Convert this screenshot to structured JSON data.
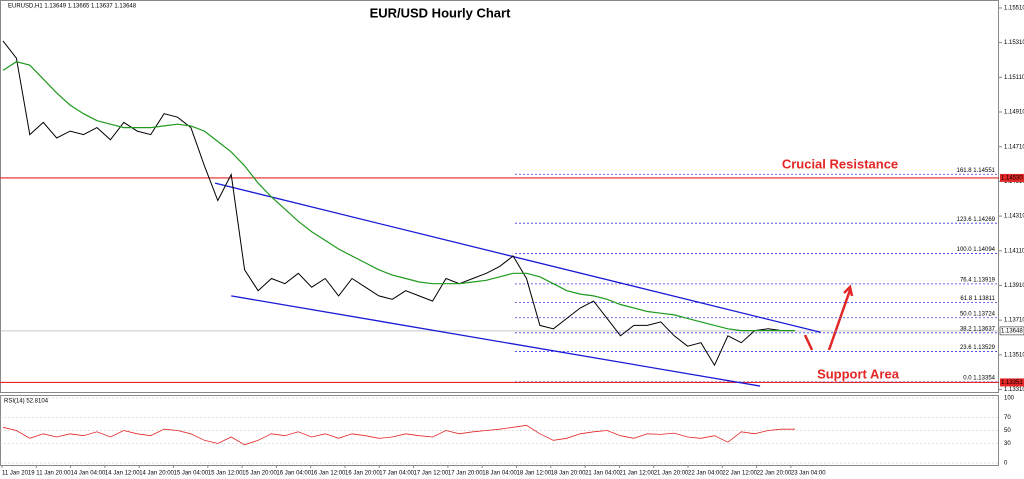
{
  "chart_data": {
    "type": "line",
    "title": "EUR/USD Hourly Chart",
    "header": "EURUSD,H1 1.13649 1.13665 1.13637 1.13648",
    "x_labels": [
      "11 Jan 2019",
      "11 Jan 20:00",
      "14 Jan 04:00",
      "14 Jan 12:00",
      "14 Jan 20:00",
      "15 Jan 04:00",
      "15 Jan 12:00",
      "15 Jan 20:00",
      "16 Jan 04:00",
      "16 Jan 12:00",
      "16 Jan 20:00",
      "17 Jan 04:00",
      "17 Jan 12:00",
      "17 Jan 20:00",
      "18 Jan 04:00",
      "18 Jan 12:00",
      "18 Jan 20:00",
      "21 Jan 04:00",
      "21 Jan 12:00",
      "21 Jan 20:00",
      "22 Jan 04:00",
      "22 Jan 12:00",
      "22 Jan 20:00",
      "23 Jan 04:00"
    ],
    "series": [
      {
        "name": "EURUSD",
        "color": "#000000",
        "values": [
          1.1532,
          1.1522,
          1.1478,
          1.1485,
          1.1476,
          1.148,
          1.1478,
          1.1482,
          1.1475,
          1.1485,
          1.148,
          1.1478,
          1.149,
          1.1488,
          1.1482,
          1.146,
          1.144,
          1.1455,
          1.14,
          1.1388,
          1.1395,
          1.1392,
          1.1398,
          1.139,
          1.1395,
          1.1385,
          1.1395,
          1.139,
          1.1385,
          1.1383,
          1.1388,
          1.1385,
          1.1382,
          1.1395,
          1.1392,
          1.1395,
          1.1398,
          1.1402,
          1.1408,
          1.1395,
          1.1368,
          1.1366,
          1.1372,
          1.1378,
          1.1382,
          1.1372,
          1.1362,
          1.1368,
          1.1368,
          1.137,
          1.1362,
          1.1356,
          1.1358,
          1.1345,
          1.1362,
          1.1358,
          1.1365,
          1.1366,
          1.1365,
          1.1365
        ]
      },
      {
        "name": "MA",
        "color": "#1f9a1f",
        "values": [
          1.1515,
          1.152,
          1.1518,
          1.151,
          1.1502,
          1.1495,
          1.149,
          1.1486,
          1.1484,
          1.1482,
          1.1482,
          1.1482,
          1.1483,
          1.1484,
          1.1483,
          1.148,
          1.1474,
          1.1468,
          1.146,
          1.145,
          1.1442,
          1.1435,
          1.1428,
          1.1422,
          1.1417,
          1.1412,
          1.1408,
          1.1404,
          1.14,
          1.1397,
          1.1395,
          1.1393,
          1.1392,
          1.1392,
          1.1392,
          1.1393,
          1.1394,
          1.1396,
          1.1398,
          1.1398,
          1.1396,
          1.1392,
          1.1388,
          1.1386,
          1.1385,
          1.1383,
          1.138,
          1.1378,
          1.1376,
          1.1375,
          1.1374,
          1.1372,
          1.137,
          1.1368,
          1.1366,
          1.1365,
          1.1365,
          1.1365,
          1.1365,
          1.1365
        ]
      }
    ],
    "ylim": [
      1.1329,
      1.1555
    ],
    "yticks": [
      {
        "value": 1.1551,
        "label": "1.15510"
      },
      {
        "value": 1.1531,
        "label": "1.15310"
      },
      {
        "value": 1.1511,
        "label": "1.15110"
      },
      {
        "value": 1.1491,
        "label": "1.14910"
      },
      {
        "value": 1.1471,
        "label": "1.14710"
      },
      {
        "value": 1.1451,
        "label": "1.14510"
      },
      {
        "value": 1.1431,
        "label": "1.14310"
      },
      {
        "value": 1.1411,
        "label": "1.14110"
      },
      {
        "value": 1.1391,
        "label": "1.13910"
      },
      {
        "value": 1.1371,
        "label": "1.13710"
      },
      {
        "value": 1.1351,
        "label": "1.13510"
      },
      {
        "value": 1.1331,
        "label": "1.13310"
      }
    ],
    "current_price": 1.13648,
    "resistance": {
      "value": 1.1453,
      "label": "1.14530",
      "color": "#e32626",
      "annotation": "Crucial Resistance"
    },
    "support": {
      "value": 1.13351,
      "label": "1.13351",
      "color": "#e32626",
      "annotation": "Support Area"
    },
    "fib_levels": [
      {
        "value": 1.14551,
        "label": "161.8 1.14551"
      },
      {
        "value": 1.14269,
        "label": "123.6 1.14269"
      },
      {
        "value": 1.14094,
        "label": "100.0 1.14094"
      },
      {
        "value": 1.13919,
        "label": "76.4 1.13919"
      },
      {
        "value": 1.13811,
        "label": "61.8 1.13811"
      },
      {
        "value": 1.13724,
        "label": "50.0 1.13724"
      },
      {
        "value": 1.13637,
        "label": "38.2 1.13637"
      },
      {
        "value": 1.13529,
        "label": "23.6 1.13529"
      },
      {
        "value": 1.13354,
        "label": "0.0 1.13354"
      }
    ],
    "trendlines": [
      {
        "color": "#1a1ad6",
        "x": [
          15.8,
          60.9
        ],
        "values": [
          1.145,
          1.1364
        ]
      },
      {
        "color": "#1a1ad6",
        "x": [
          17,
          56.4
        ],
        "values": [
          1.1385,
          1.1333
        ]
      }
    ],
    "rsi": {
      "label": "RSI(14) 52.8104",
      "color": "#e32626",
      "ylim": [
        0,
        100
      ],
      "yticks": [
        100,
        70,
        50,
        30,
        0
      ],
      "values": [
        55,
        50,
        38,
        45,
        40,
        45,
        42,
        48,
        40,
        50,
        45,
        42,
        52,
        50,
        45,
        35,
        30,
        40,
        28,
        35,
        45,
        42,
        48,
        40,
        45,
        38,
        45,
        42,
        38,
        40,
        45,
        42,
        40,
        50,
        45,
        48,
        50,
        52,
        55,
        58,
        45,
        35,
        38,
        45,
        48,
        50,
        42,
        38,
        45,
        44,
        46,
        40,
        38,
        42,
        32,
        48,
        45,
        50,
        52,
        52
      ]
    }
  }
}
